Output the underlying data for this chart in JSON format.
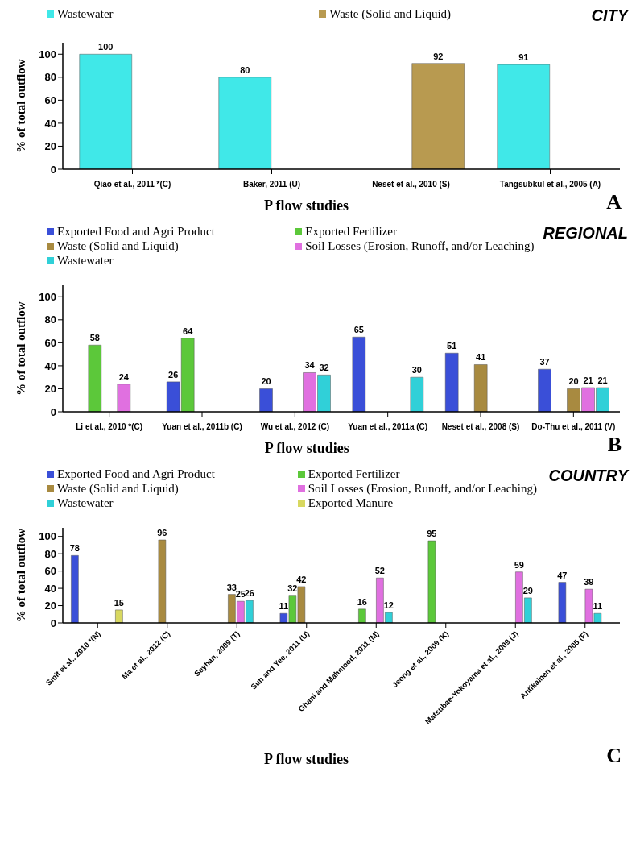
{
  "chart_data": [
    {
      "type": "bar",
      "title": "CITY",
      "xlabel": "P flow studies",
      "ylabel": "% of total outflow",
      "annotations": [
        "A"
      ],
      "categories": [
        "Qiao et al., 2011 *(C)",
        "Baker, 2011 (U)",
        "Neset et al., 2010 (S)",
        "Tangsubkul et al., 2005 (A)"
      ],
      "series": [
        {
          "name": "Wastewater",
          "color": "#40e8e8",
          "values": [
            100,
            80,
            null,
            91
          ]
        },
        {
          "name": "Waste (Solid and Liquid)",
          "color": "#b89a50",
          "values": [
            null,
            null,
            92,
            null
          ]
        }
      ],
      "ylim": [
        0,
        110
      ],
      "yticks": [
        0,
        20,
        40,
        60,
        80,
        100
      ],
      "data_labels": true,
      "legend": "top",
      "grid": false
    },
    {
      "type": "bar",
      "title": "REGIONAL",
      "xlabel": "P flow studies",
      "ylabel": "% of total outflow",
      "annotations": [
        "B"
      ],
      "categories": [
        "Li et al., 2010 *(C)",
        "Yuan et al., 2011b (C)",
        "Wu et al., 2012 (C)",
        "Yuan et al., 2011a (C)",
        "Neset et al., 2008 (S)",
        "Do-Thu et al., 2011 (V)"
      ],
      "series": [
        {
          "name": "Exported Food and Agri Product",
          "color": "#3a4fd8",
          "values": [
            null,
            26,
            20,
            65,
            51,
            37
          ]
        },
        {
          "name": "Exported Fertilizer",
          "color": "#5cc83a",
          "values": [
            58,
            64,
            null,
            null,
            null,
            null
          ]
        },
        {
          "name": "Waste (Solid and Liquid)",
          "color": "#a88a40",
          "values": [
            null,
            null,
            null,
            null,
            41,
            20
          ]
        },
        {
          "name": "Soil Losses (Erosion, Runoff, and/or Leaching)",
          "color": "#e070e0",
          "values": [
            24,
            null,
            34,
            null,
            null,
            21
          ]
        },
        {
          "name": "Wastewater",
          "color": "#30d0d8",
          "values": [
            null,
            null,
            32,
            30,
            null,
            21
          ]
        }
      ],
      "ylim": [
        0,
        110
      ],
      "yticks": [
        0,
        20,
        40,
        60,
        80,
        100
      ],
      "data_labels": true,
      "legend": "top",
      "grid": false
    },
    {
      "type": "bar",
      "title": "COUNTRY",
      "xlabel": "P flow studies",
      "ylabel": "% of total outflow",
      "annotations": [
        "C"
      ],
      "categories": [
        "Smit et al., 2010 *(N)",
        "Ma et al., 2012 (C)",
        "Seyhan, 2009 (T)",
        "Suh and Yee, 2011 (U)",
        "Ghani and Mahmood, 2011 (M)",
        "Jeong et al., 2009 (K)",
        "Matsubae-Yokoyama et al., 2009 (J)",
        "Antikainen et al., 2005 (F)"
      ],
      "series": [
        {
          "name": "Exported Food and Agri Product",
          "color": "#3a4fd8",
          "values": [
            78,
            null,
            null,
            11,
            null,
            null,
            null,
            47
          ]
        },
        {
          "name": "Exported Fertilizer",
          "color": "#5cc83a",
          "values": [
            null,
            null,
            null,
            32,
            16,
            95,
            null,
            null
          ]
        },
        {
          "name": "Waste (Solid and Liquid)",
          "color": "#a88a40",
          "values": [
            null,
            96,
            33,
            42,
            null,
            null,
            null,
            null
          ]
        },
        {
          "name": "Soil Losses (Erosion, Runoff, and/or Leaching)",
          "color": "#e070e0",
          "values": [
            null,
            null,
            25,
            null,
            52,
            null,
            59,
            39
          ]
        },
        {
          "name": "Wastewater",
          "color": "#30d0d8",
          "values": [
            null,
            null,
            26,
            null,
            12,
            null,
            29,
            11
          ]
        },
        {
          "name": "Exported Manure",
          "color": "#d8d860",
          "values": [
            15,
            null,
            null,
            null,
            null,
            null,
            null,
            null
          ]
        }
      ],
      "ylim": [
        0,
        110
      ],
      "yticks": [
        0,
        20,
        40,
        60,
        80,
        100
      ],
      "data_labels": true,
      "legend": "top",
      "grid": false
    }
  ]
}
